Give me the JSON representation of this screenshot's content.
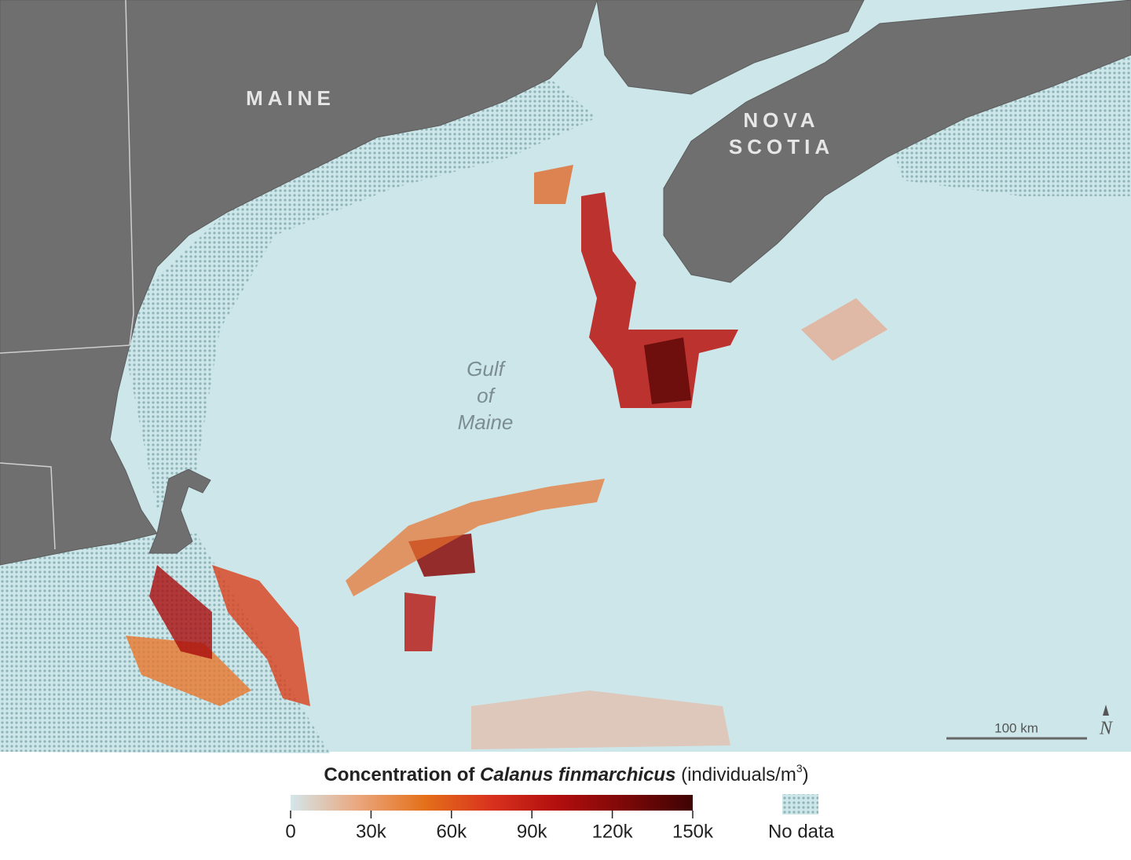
{
  "map_labels": {
    "maine": "MAINE",
    "nova_scotia": [
      "NOVA",
      "SCOTIA"
    ],
    "gulf": [
      "Gulf",
      "of",
      "Maine"
    ]
  },
  "scale_bar": "100 km",
  "north": "N",
  "legend": {
    "title": [
      "Concentration of ",
      "Calanus finmarchicus",
      " (individuals/m",
      "3",
      ")"
    ],
    "range": [
      0,
      150000
    ],
    "ticks": [
      0,
      {
        "value": 30000,
        "label": "30k"
      },
      {
        "value": 60000,
        "label": "60k"
      },
      {
        "value": 90000,
        "label": "90k"
      },
      {
        "value": 120000,
        "label": "120k"
      },
      {
        "value": 150000,
        "label": "150k"
      }
    ],
    "colors": [
      "#d3e6ea",
      "#eaa77e",
      "#e4701a",
      "#d8321e",
      "#b10e0e",
      "#7c0808",
      "#3f0303"
    ],
    "no_data": "No data"
  }
}
